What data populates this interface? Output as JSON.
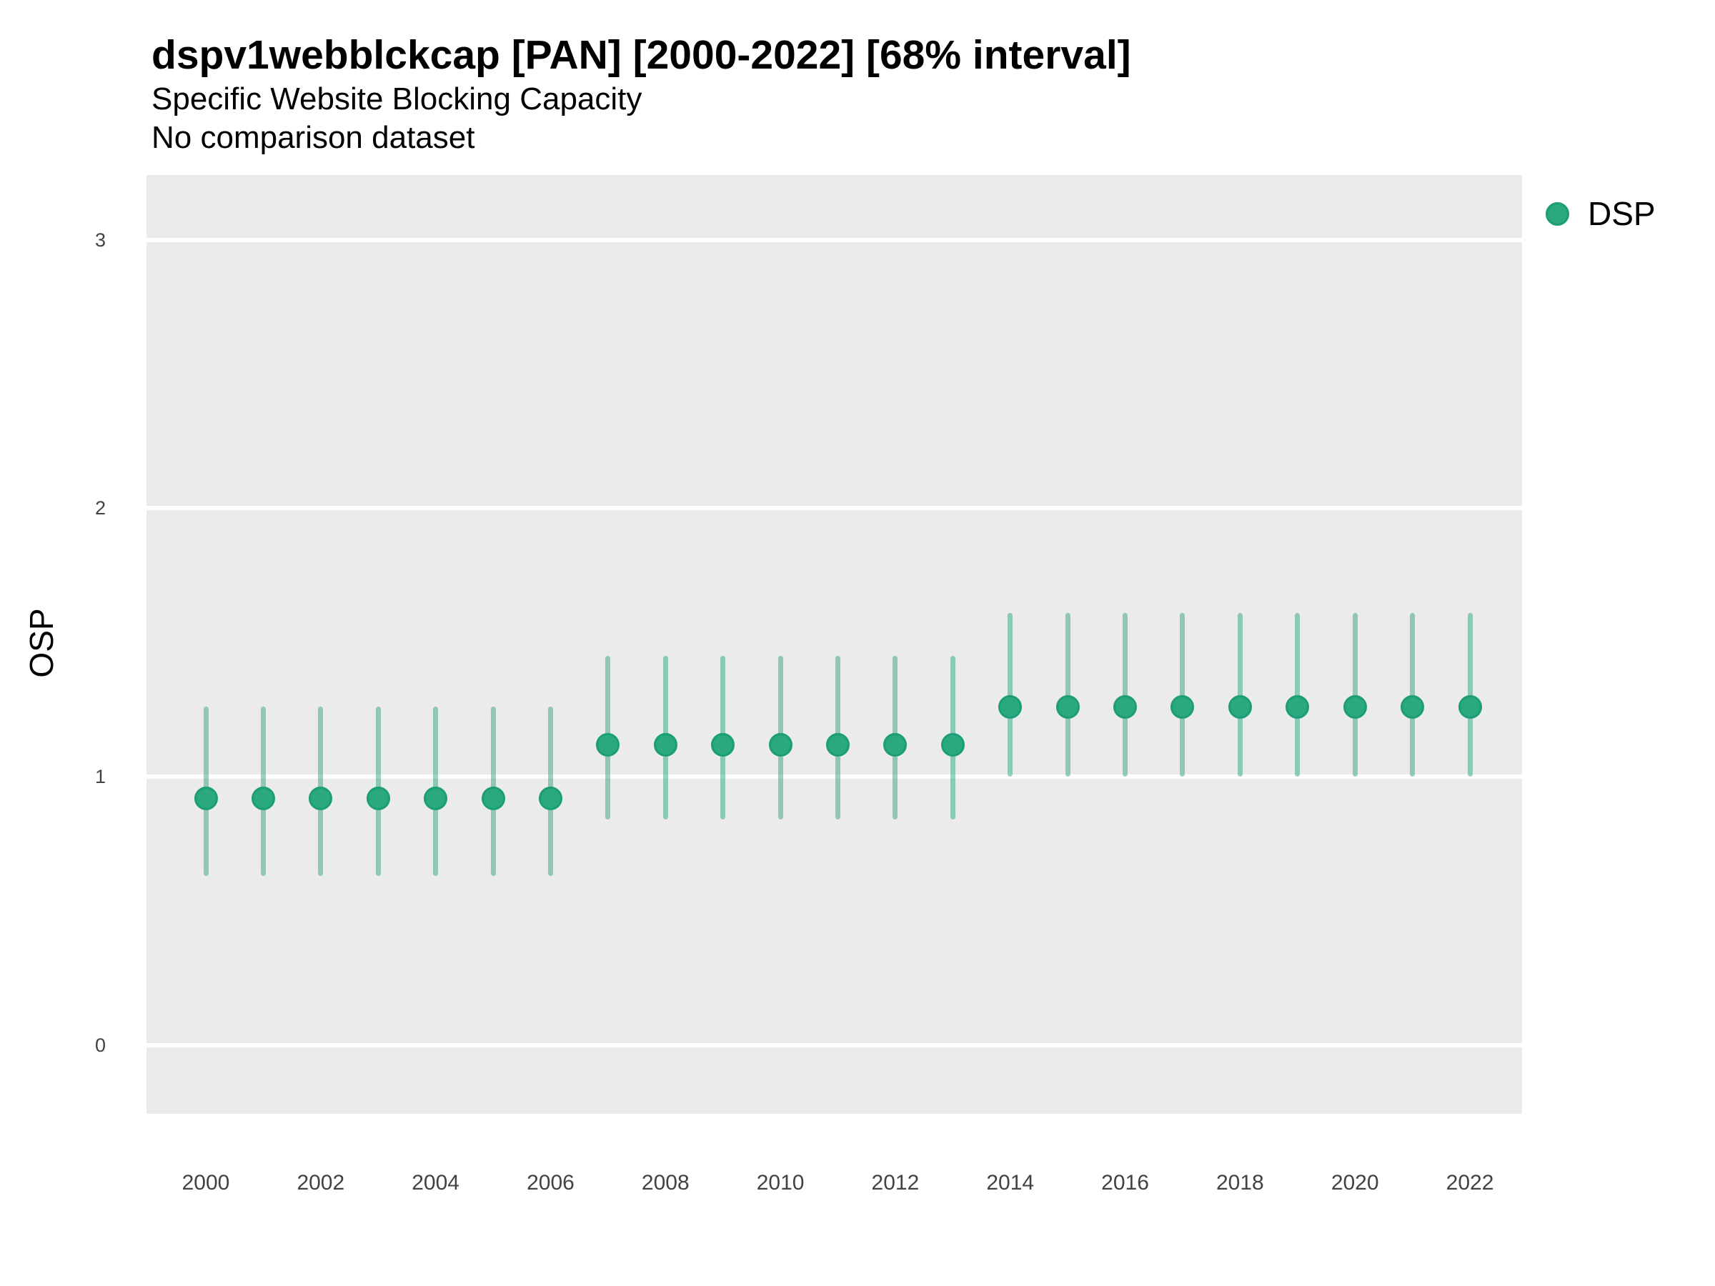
{
  "legend": {
    "items": [
      {
        "label": "DSP",
        "color": "#1B9E77"
      }
    ]
  },
  "chart_data": {
    "type": "pointrange",
    "title": "dspv1webblckcap [PAN] [2000-2022] [68% interval]",
    "subtitle": "Specific Website Blocking Capacity",
    "note": "No comparison dataset",
    "xlabel": "",
    "ylabel": "OSP",
    "interval": "68%",
    "x_ticks": [
      2000,
      2002,
      2004,
      2006,
      2008,
      2010,
      2012,
      2014,
      2016,
      2018,
      2020,
      2022
    ],
    "y_ticks": [
      0,
      1,
      2,
      3
    ],
    "ylim": [
      -0.26,
      3.24
    ],
    "grid": "major-horizontal-only",
    "legend_position": "right-top",
    "panel_bg": "#EBEBEB",
    "gridline_color": "#FFFFFF",
    "series": [
      {
        "name": "DSP",
        "point_fill": "#2AA87E",
        "point_stroke": "#1B9E77",
        "interval_color": "#1B9E77",
        "interval_alpha": 0.45,
        "points": [
          {
            "year": 2000,
            "mid": 0.92,
            "lo": 0.63,
            "hi": 1.26
          },
          {
            "year": 2001,
            "mid": 0.92,
            "lo": 0.63,
            "hi": 1.26
          },
          {
            "year": 2002,
            "mid": 0.92,
            "lo": 0.63,
            "hi": 1.26
          },
          {
            "year": 2003,
            "mid": 0.92,
            "lo": 0.63,
            "hi": 1.26
          },
          {
            "year": 2004,
            "mid": 0.92,
            "lo": 0.63,
            "hi": 1.26
          },
          {
            "year": 2005,
            "mid": 0.92,
            "lo": 0.63,
            "hi": 1.26
          },
          {
            "year": 2006,
            "mid": 0.92,
            "lo": 0.63,
            "hi": 1.26
          },
          {
            "year": 2007,
            "mid": 1.12,
            "lo": 0.84,
            "hi": 1.45
          },
          {
            "year": 2008,
            "mid": 1.12,
            "lo": 0.84,
            "hi": 1.45
          },
          {
            "year": 2009,
            "mid": 1.12,
            "lo": 0.84,
            "hi": 1.45
          },
          {
            "year": 2010,
            "mid": 1.12,
            "lo": 0.84,
            "hi": 1.45
          },
          {
            "year": 2011,
            "mid": 1.12,
            "lo": 0.84,
            "hi": 1.45
          },
          {
            "year": 2012,
            "mid": 1.12,
            "lo": 0.84,
            "hi": 1.45
          },
          {
            "year": 2013,
            "mid": 1.12,
            "lo": 0.84,
            "hi": 1.45
          },
          {
            "year": 2014,
            "mid": 1.26,
            "lo": 1.0,
            "hi": 1.61
          },
          {
            "year": 2015,
            "mid": 1.26,
            "lo": 1.0,
            "hi": 1.61
          },
          {
            "year": 2016,
            "mid": 1.26,
            "lo": 1.0,
            "hi": 1.61
          },
          {
            "year": 2017,
            "mid": 1.26,
            "lo": 1.0,
            "hi": 1.61
          },
          {
            "year": 2018,
            "mid": 1.26,
            "lo": 1.0,
            "hi": 1.61
          },
          {
            "year": 2019,
            "mid": 1.26,
            "lo": 1.0,
            "hi": 1.61
          },
          {
            "year": 2020,
            "mid": 1.26,
            "lo": 1.0,
            "hi": 1.61
          },
          {
            "year": 2021,
            "mid": 1.26,
            "lo": 1.0,
            "hi": 1.61
          },
          {
            "year": 2022,
            "mid": 1.26,
            "lo": 1.0,
            "hi": 1.61
          }
        ]
      }
    ]
  }
}
